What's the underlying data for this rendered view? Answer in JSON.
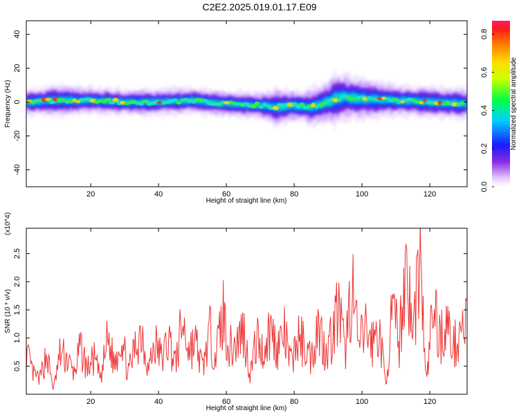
{
  "title": "C2E2.2025.019.01.17.E09",
  "colors": {
    "signal": "#ee3333",
    "frame": "#000000"
  },
  "chart_data": [
    {
      "type": "heatmap",
      "xlabel": "Height of straight line (km)",
      "ylabel": "Frequency (Hz)",
      "xlim": [
        1,
        131
      ],
      "ylim": [
        -50,
        48
      ],
      "xticks": [
        20,
        40,
        60,
        80,
        100,
        120
      ],
      "yticks": [
        -40,
        -20,
        0,
        20,
        40
      ],
      "colorbar": {
        "label": "Normalized spectral amplitude",
        "range": [
          0,
          0.87
        ],
        "ticks": [
          0.0,
          0.2,
          0.4,
          0.6,
          0.8
        ]
      },
      "ridge": {
        "x": [
          1,
          10,
          20,
          30,
          40,
          50,
          60,
          70,
          75,
          80,
          85,
          90,
          92,
          95,
          100,
          110,
          120,
          130
        ],
        "center_hz": [
          0,
          1,
          1,
          0,
          0,
          1,
          -1,
          -2,
          -3,
          -2,
          -3,
          0,
          2,
          3,
          2,
          1,
          0,
          -1
        ],
        "halfwidth_hz": [
          5,
          6,
          5,
          5,
          5,
          5,
          5,
          5,
          7,
          6,
          7,
          8,
          10,
          9,
          8,
          6,
          6,
          6
        ]
      }
    },
    {
      "type": "line",
      "xlabel": "Height of straight line (km)",
      "ylabel": "SNR (10 * v/v)",
      "y_multiplier": "(x10^4)",
      "xlim": [
        1,
        131
      ],
      "ylim": [
        0,
        2.95
      ],
      "xticks": [
        20,
        40,
        60,
        80,
        100,
        120
      ],
      "yticks": [
        0.5,
        1.0,
        1.5,
        2.0,
        2.5
      ],
      "series": [
        {
          "x_start": 1,
          "x_step": 2,
          "values": [
            0.8,
            0.4,
            0.3,
            0.8,
            0.1,
            0.8,
            0.7,
            0.4,
            0.9,
            0.5,
            0.7,
            0.3,
            1.1,
            0.6,
            1.2,
            0.4,
            0.9,
            1.3,
            0.5,
            1.0,
            0.7,
            1.1,
            0.6,
            1.4,
            0.9,
            1.0,
            0.5,
            1.2,
            0.8,
            1.6,
            0.9,
            1.0,
            1.3,
            0.4,
            1.1,
            0.8,
            1.3,
            0.9,
            1.2,
            0.6,
            1.1,
            1.0,
            0.7,
            1.4,
            0.9,
            1.1,
            1.7,
            0.8,
            2.2,
            0.9,
            1.3,
            1.0,
            1.3,
            0.2,
            1.6,
            1.0,
            2.7,
            1.1,
            2.8,
            0.2,
            1.8,
            1.1,
            1.4,
            0.9,
            1.3,
            1.4
          ]
        }
      ]
    }
  ]
}
